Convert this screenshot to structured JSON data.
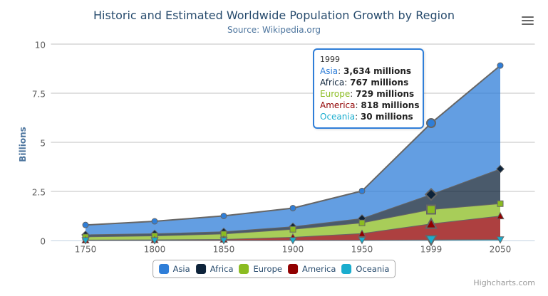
{
  "chart": {
    "title": "Historic and Estimated Worldwide Population Growth by Region",
    "subtitle": "Source: Wikipedia.org",
    "y_axis_title": "Billions",
    "credits": "Highcharts.com"
  },
  "chart_data": {
    "type": "area",
    "stacking": "normal",
    "title": "Historic and Estimated Worldwide Population Growth by Region",
    "subtitle": "Source: Wikipedia.org",
    "categories": [
      "1750",
      "1800",
      "1850",
      "1900",
      "1950",
      "1999",
      "2050"
    ],
    "series": [
      {
        "name": "Asia",
        "color": "#2f7ed8",
        "marker": "circle",
        "values": [
          502,
          635,
          809,
          947,
          1402,
          3634,
          5268
        ]
      },
      {
        "name": "Africa",
        "color": "#0d233a",
        "marker": "diamond",
        "values": [
          106,
          107,
          111,
          133,
          221,
          767,
          1766
        ]
      },
      {
        "name": "Europe",
        "color": "#8bbc21",
        "marker": "square",
        "values": [
          163,
          203,
          276,
          408,
          547,
          729,
          628
        ]
      },
      {
        "name": "America",
        "color": "#910000",
        "marker": "triangle",
        "values": [
          18,
          31,
          54,
          156,
          339,
          818,
          1201
        ]
      },
      {
        "name": "Oceania",
        "color": "#1aadce",
        "marker": "triangle-down",
        "values": [
          2,
          2,
          2,
          6,
          13,
          30,
          46
        ]
      }
    ],
    "values_unit": "millions",
    "xlabel": "",
    "ylabel": "Billions",
    "ylim": [
      0,
      10
    ],
    "yticks": [
      "0",
      "2.5",
      "5",
      "7.5",
      "10"
    ],
    "grid": "horizontal",
    "legend_position": "bottom",
    "line_color": "#666666",
    "fill_opacity": 0.75,
    "hovered_category": "1999"
  },
  "tooltip": {
    "header": "1999",
    "rows": [
      {
        "name": "Asia",
        "color": "#2f7ed8",
        "value": "3,634",
        "suffix": " millions"
      },
      {
        "name": "Africa",
        "color": "#0d233a",
        "value": "767",
        "suffix": " millions"
      },
      {
        "name": "Europe",
        "color": "#8bbc21",
        "value": "729",
        "suffix": " millions"
      },
      {
        "name": "America",
        "color": "#910000",
        "value": "818",
        "suffix": " millions"
      },
      {
        "name": "Oceania",
        "color": "#1aadce",
        "value": "30",
        "suffix": " millions"
      }
    ]
  },
  "legend": {
    "items": [
      {
        "label": "Asia",
        "color": "#2f7ed8"
      },
      {
        "label": "Africa",
        "color": "#0d233a"
      },
      {
        "label": "Europe",
        "color": "#8bbc21"
      },
      {
        "label": "America",
        "color": "#910000"
      },
      {
        "label": "Oceania",
        "color": "#1aadce"
      }
    ]
  }
}
